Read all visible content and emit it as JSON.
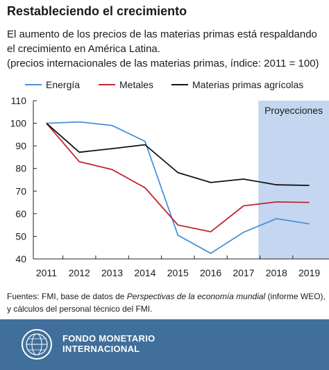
{
  "header": {
    "title": "Restableciendo el crecimiento",
    "subtitle_lines": [
      "El aumento de los precios de las materias primas está respaldando",
      "el crecimiento en América Latina."
    ],
    "note": "(precios internacionales de las materias primas, índice: 2011 = 100)"
  },
  "chart_data": {
    "type": "line",
    "title": "",
    "xlabel": "",
    "ylabel": "",
    "x": [
      2011,
      2012,
      2013,
      2014,
      2015,
      2016,
      2017,
      2018,
      2019
    ],
    "xlim": [
      2010.6,
      2019.6
    ],
    "ylim": [
      40,
      110
    ],
    "yticks": [
      40,
      50,
      60,
      70,
      80,
      90,
      100,
      110
    ],
    "grid": false,
    "legend_placement": "top",
    "series": [
      {
        "name": "Energía",
        "color": "#4a90d9",
        "values": [
          100,
          100.6,
          99,
          92,
          50.5,
          42.5,
          51.8,
          57.8,
          55.5
        ]
      },
      {
        "name": "Metales",
        "color": "#c0272d",
        "values": [
          100,
          83,
          79.5,
          71.5,
          55,
          52,
          63.5,
          65.2,
          65
        ]
      },
      {
        "name": "Materias primas agrícolas",
        "color": "#111111",
        "values": [
          100,
          87.2,
          88.8,
          90.5,
          78.2,
          73.8,
          75.3,
          72.8,
          72.5
        ]
      }
    ],
    "projection": {
      "label": "Proyecciones",
      "from": 2017.45,
      "to": 2019.6,
      "color": "#c5d7f0"
    }
  },
  "sources": {
    "prefix": "Fuentes: FMI, base de datos de ",
    "publication": "Perspectivas de la economía mundial",
    "suffix": " (informe WEO),",
    "line2": "y cálculos del personal técnico del FMI."
  },
  "footer": {
    "org_line1": "FONDO MONETARIO",
    "org_line2": "INTERNACIONAL",
    "logo_icon": "imf-seal-icon",
    "background": "#3f6f9a"
  }
}
